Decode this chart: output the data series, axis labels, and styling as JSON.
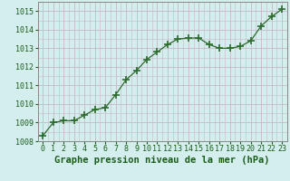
{
  "x": [
    0,
    1,
    2,
    3,
    4,
    5,
    6,
    7,
    8,
    9,
    10,
    11,
    12,
    13,
    14,
    15,
    16,
    17,
    18,
    19,
    20,
    21,
    22,
    23
  ],
  "y": [
    1008.3,
    1009.0,
    1009.1,
    1009.1,
    1009.4,
    1009.7,
    1009.8,
    1010.5,
    1011.3,
    1011.8,
    1012.4,
    1012.8,
    1013.2,
    1013.5,
    1013.55,
    1013.55,
    1013.2,
    1013.0,
    1013.0,
    1013.1,
    1013.4,
    1014.2,
    1014.7,
    1015.1
  ],
  "line_color": "#2d6a2d",
  "marker_color": "#2d6a2d",
  "background_color": "#d4eeee",
  "grid_color": "#c8b8c8",
  "xlabel": "Graphe pression niveau de la mer (hPa)",
  "xlabel_color": "#1a5c1a",
  "tick_color": "#1a5c1a",
  "ylim": [
    1008,
    1015.5
  ],
  "yticks": [
    1008,
    1009,
    1010,
    1011,
    1012,
    1013,
    1014,
    1015
  ],
  "xlim": [
    -0.5,
    23.5
  ],
  "xticks": [
    0,
    1,
    2,
    3,
    4,
    5,
    6,
    7,
    8,
    9,
    10,
    11,
    12,
    13,
    14,
    15,
    16,
    17,
    18,
    19,
    20,
    21,
    22,
    23
  ],
  "xlabel_fontsize": 7.5,
  "tick_fontsize": 6,
  "linewidth": 0.9,
  "markersize": 3.5
}
